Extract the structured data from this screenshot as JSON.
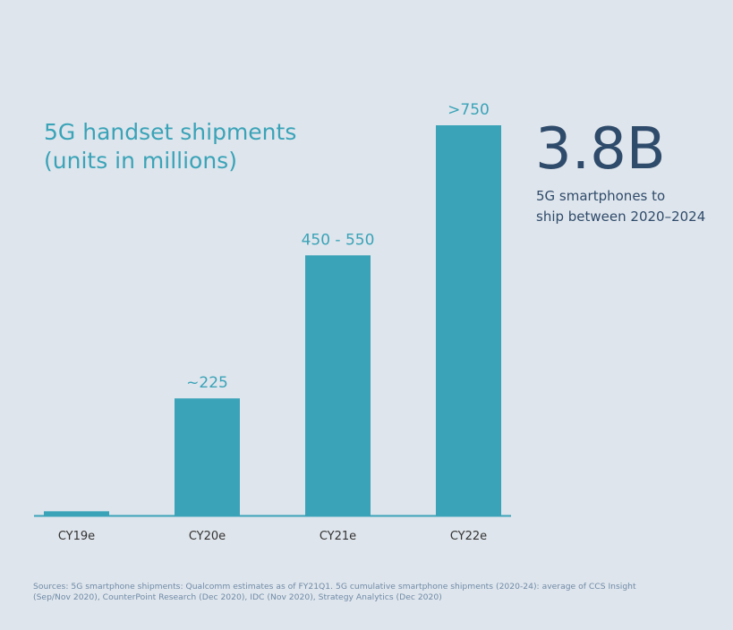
{
  "chart_data": {
    "type": "bar",
    "title": "5G handset shipments",
    "subtitle": "(units in millions)",
    "categories": [
      "CY19e",
      "CY20e",
      "CY21e",
      "CY22e"
    ],
    "values": [
      8,
      225,
      500,
      750
    ],
    "data_labels": [
      "",
      "~225",
      "450 - 550",
      ">750"
    ],
    "ylim": [
      0,
      750
    ],
    "bar_color": "#3aa3b8",
    "axis_color": "#3aa3b8",
    "grid": false,
    "xlabel": "",
    "ylabel": ""
  },
  "callout": {
    "value": "3.8B",
    "line1": "5G smartphones to",
    "line2": "ship between 2020–2024",
    "color": "#2f4b6b"
  },
  "footer": {
    "sources": "Sources: 5G smartphone shipments: Qualcomm estimates as of FY21Q1. 5G cumulative smartphone shipments (2020-24): average of CCS Insight (Sep/Nov 2020), CounterPoint Research (Dec 2020), IDC (Nov 2020), Strategy Analytics (Dec 2020)"
  }
}
